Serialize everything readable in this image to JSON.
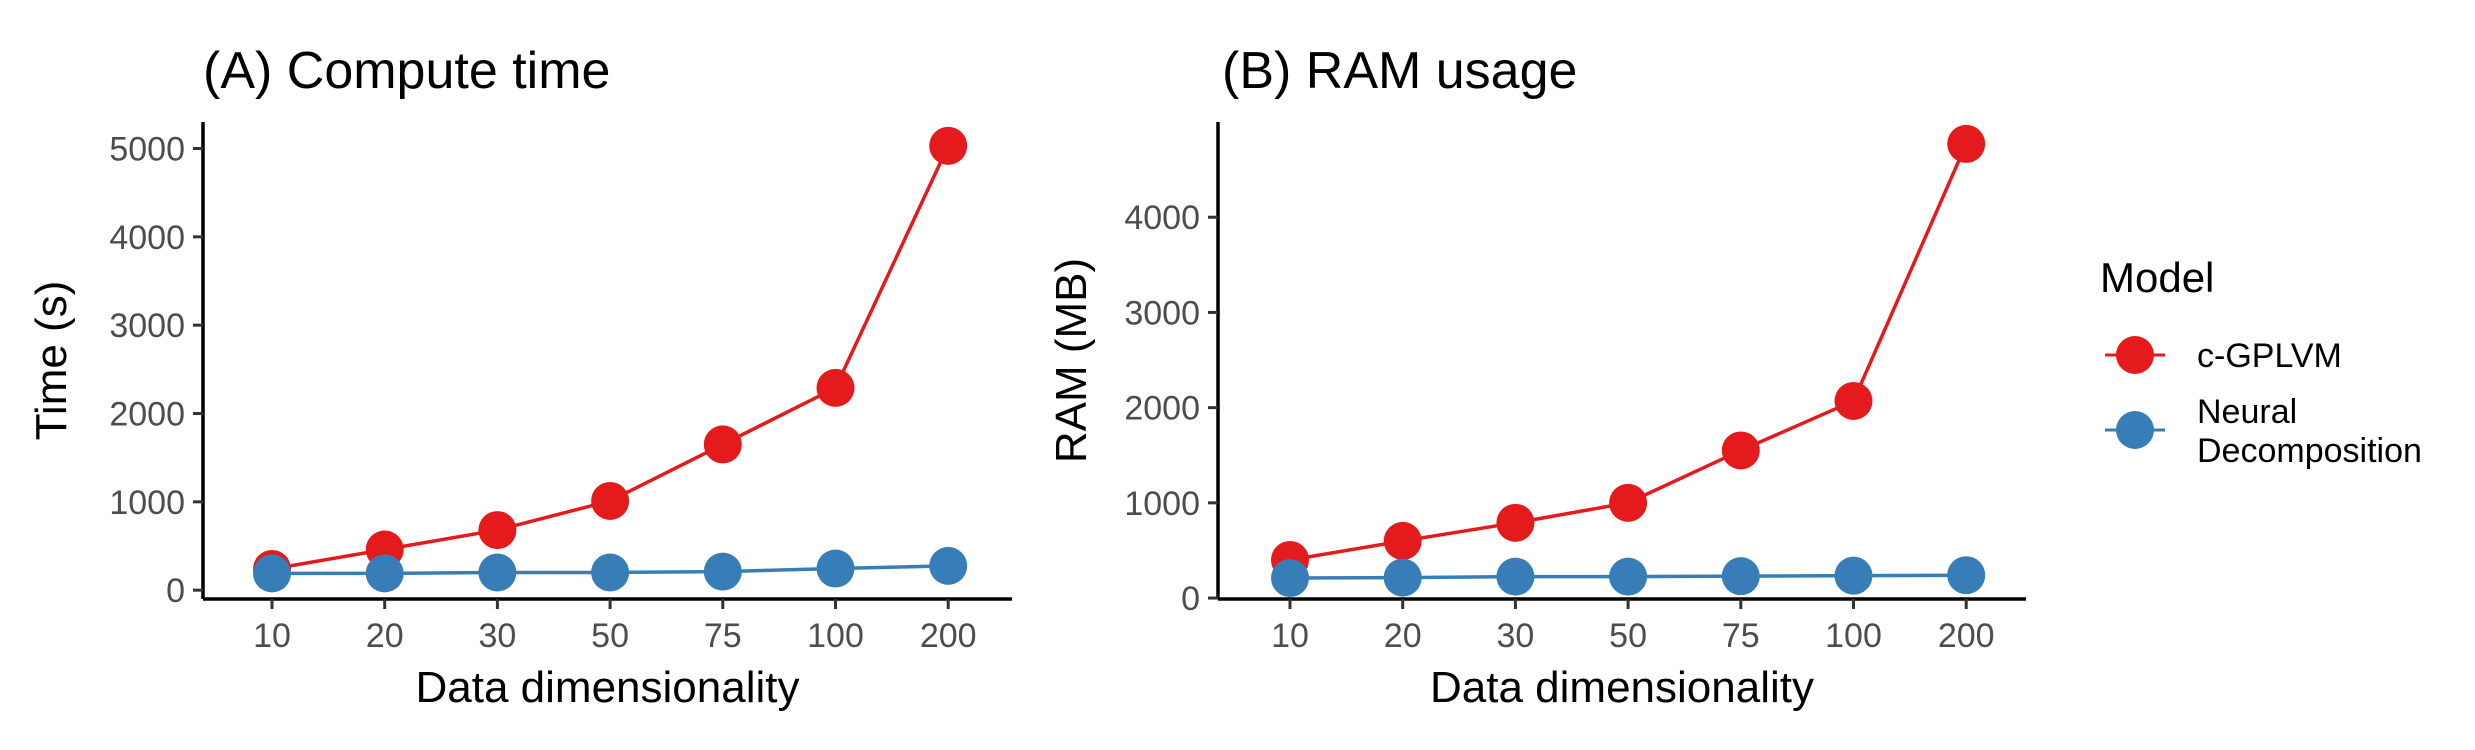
{
  "chart_data": [
    {
      "type": "line",
      "title": "(A) Compute time",
      "xlabel": "Data dimensionality",
      "ylabel": "Time (s)",
      "categories": [
        "10",
        "20",
        "30",
        "50",
        "75",
        "100",
        "200"
      ],
      "yticks": [
        "0",
        "1000",
        "2000",
        "3000",
        "4000",
        "5000"
      ],
      "ylim": [
        -100,
        5300
      ],
      "grid": false,
      "series": [
        {
          "name": "c-GPLVM",
          "color": "#e41a1c",
          "values": [
            240,
            460,
            680,
            1010,
            1650,
            2290,
            5030
          ]
        },
        {
          "name": "Neural Decomposition",
          "color": "#377eb8",
          "values": [
            190,
            190,
            200,
            200,
            210,
            245,
            275
          ]
        }
      ]
    },
    {
      "type": "line",
      "title": "(B) RAM usage",
      "xlabel": "Data dimensionality",
      "ylabel": "RAM (MB)",
      "categories": [
        "10",
        "20",
        "30",
        "50",
        "75",
        "100",
        "200"
      ],
      "yticks": [
        "0",
        "1000",
        "2000",
        "3000",
        "4000"
      ],
      "ylim": [
        -10,
        5000
      ],
      "grid": false,
      "series": [
        {
          "name": "c-GPLVM",
          "color": "#e41a1c",
          "values": [
            400,
            600,
            790,
            1000,
            1550,
            2070,
            4770
          ]
        },
        {
          "name": "Neural Decomposition",
          "color": "#377eb8",
          "values": [
            210,
            215,
            225,
            225,
            230,
            235,
            240
          ]
        }
      ]
    }
  ],
  "legend": {
    "title": "Model",
    "position": "right",
    "items": [
      {
        "lines": [
          "c-GPLVM"
        ],
        "color": "#e41a1c"
      },
      {
        "lines": [
          "Neural",
          "Decomposition"
        ],
        "color": "#377eb8"
      }
    ]
  }
}
